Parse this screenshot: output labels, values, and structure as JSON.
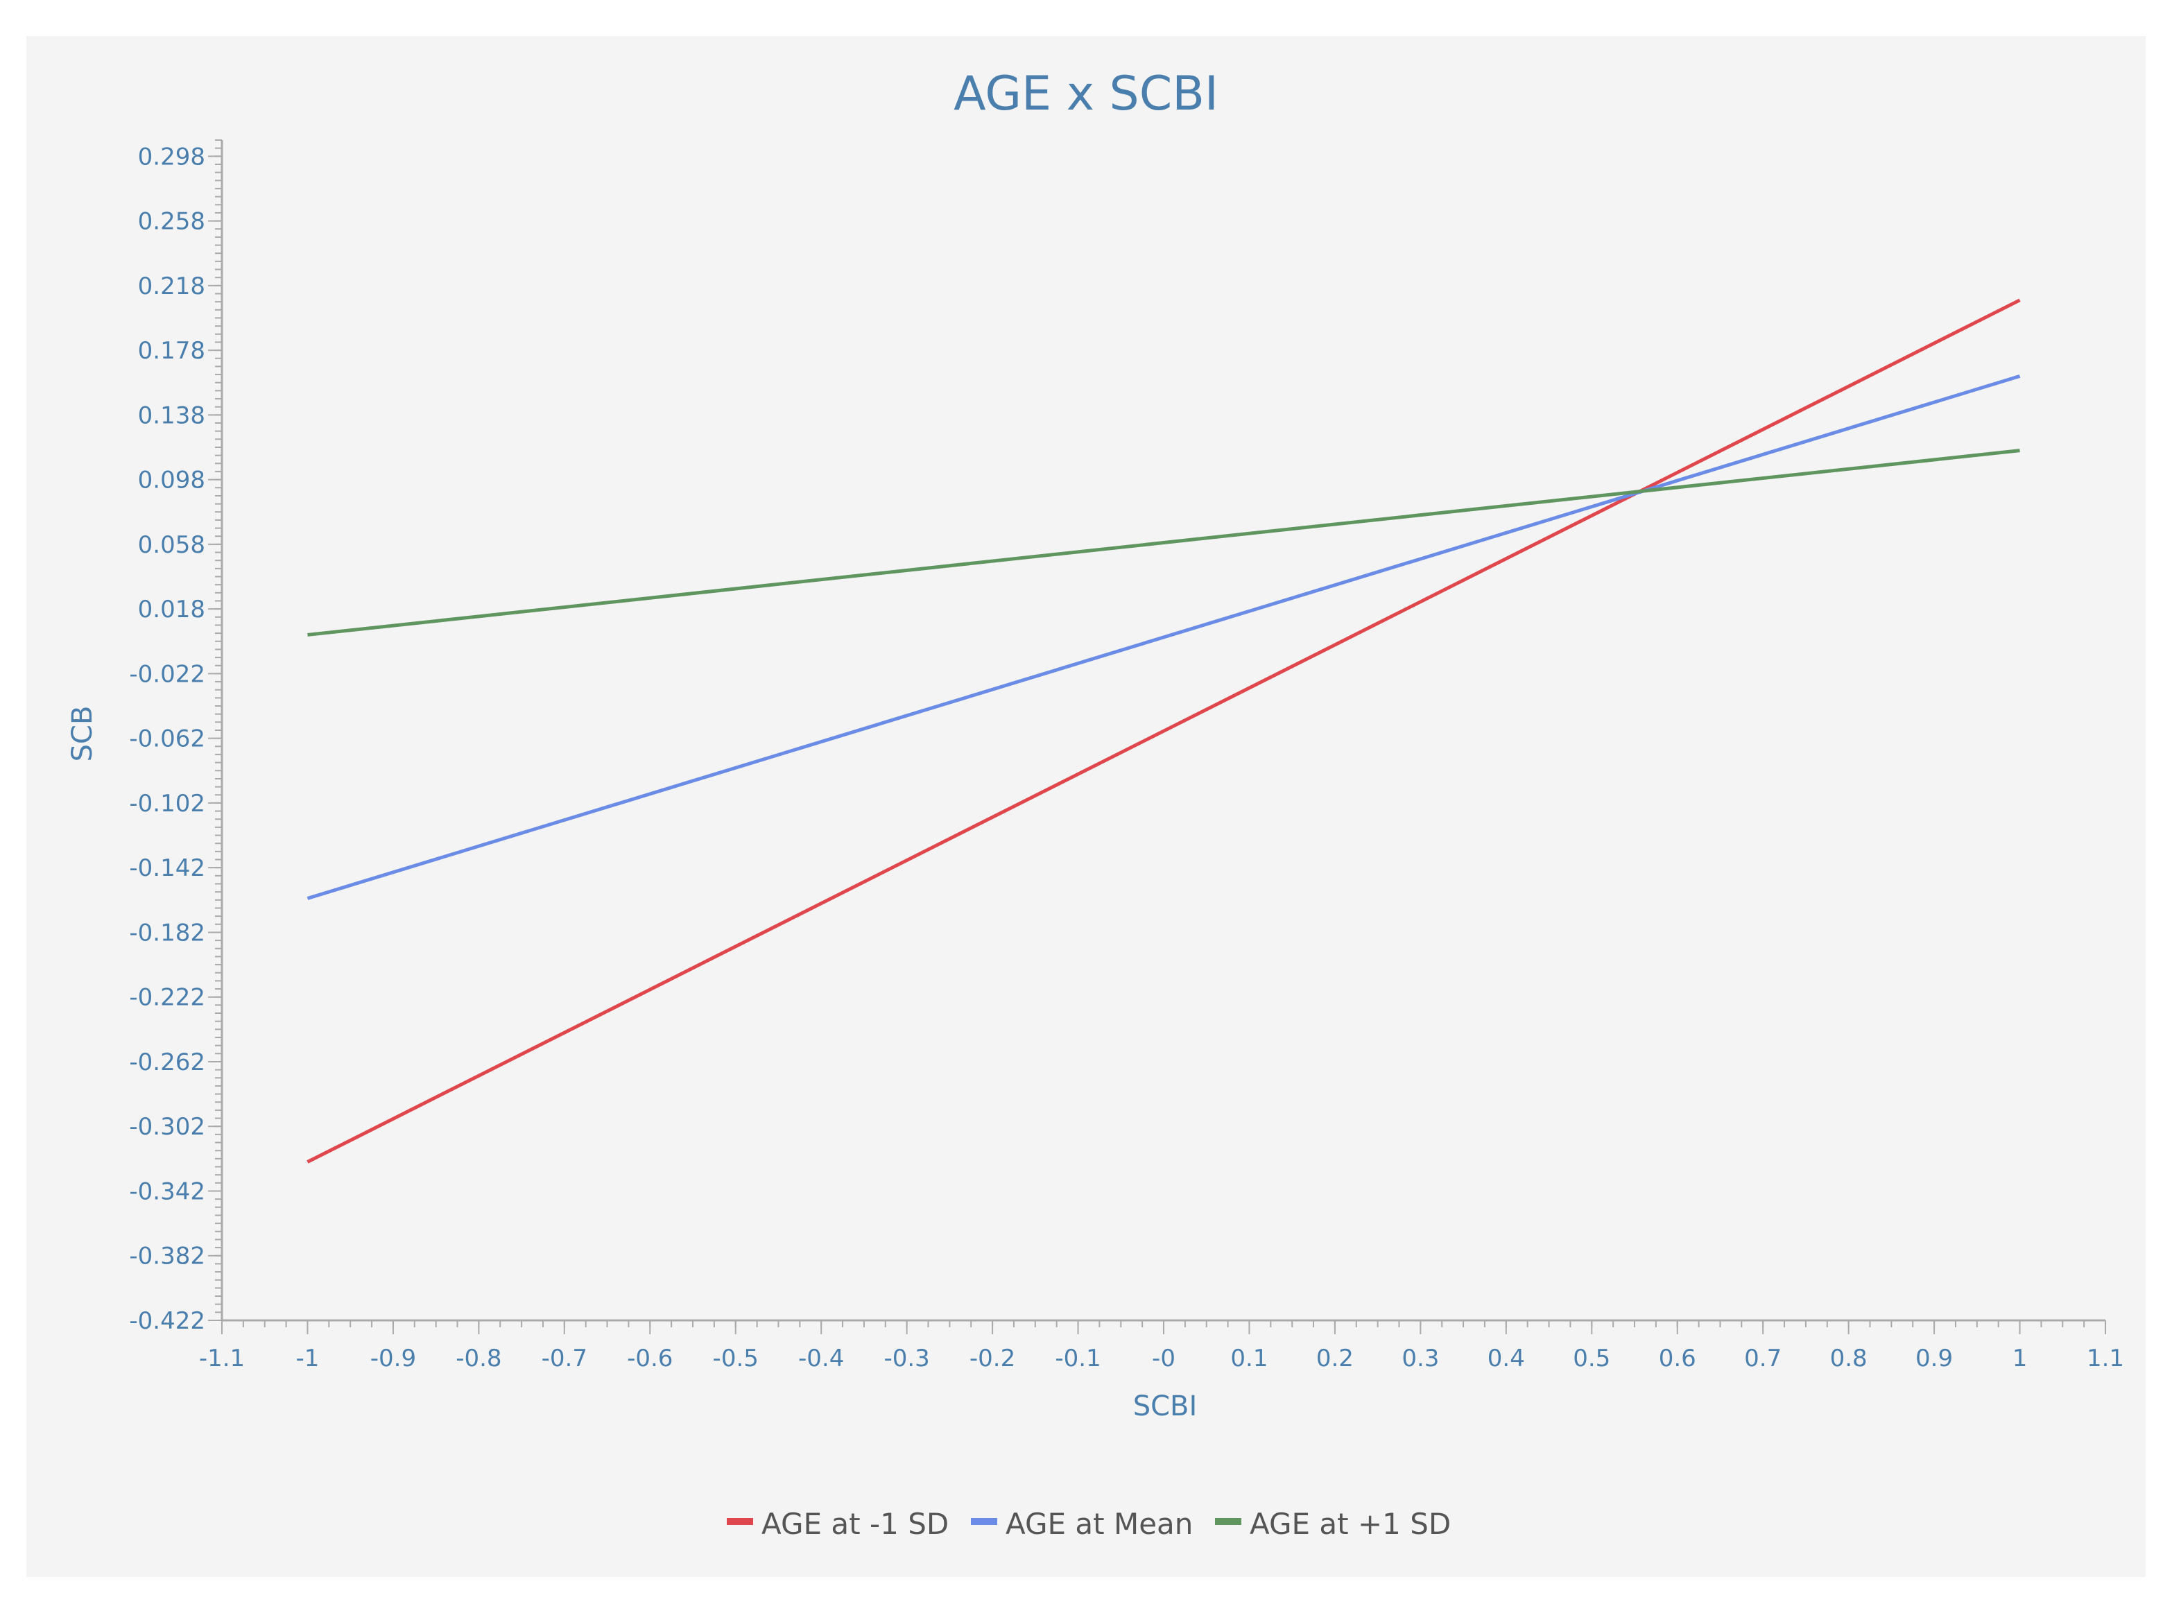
{
  "chart_data": {
    "type": "line",
    "title": "AGE x SCBI",
    "xlabel": "SCBI",
    "ylabel": "SCB",
    "xlim": [
      -1.1,
      1.1
    ],
    "ylim": [
      -0.422,
      0.308
    ],
    "x_ticks": [
      -1.1,
      -1,
      -0.9,
      -0.8,
      -0.7,
      -0.6,
      -0.5,
      -0.4,
      -0.3,
      -0.2,
      -0.1,
      0,
      0.1,
      0.2,
      0.3,
      0.4,
      0.5,
      0.6,
      0.7,
      0.8,
      0.9,
      1,
      1.1
    ],
    "x_tick_labels": [
      "-1.1",
      "-1",
      "-0.9",
      "-0.8",
      "-0.7",
      "-0.6",
      "-0.5",
      "-0.4",
      "-0.3",
      "-0.2",
      "-0.1",
      "-0",
      "0.1",
      "0.2",
      "0.3",
      "0.4",
      "0.5",
      "0.6",
      "0.7",
      "0.8",
      "0.9",
      "1",
      "1.1"
    ],
    "y_ticks": [
      0.298,
      0.258,
      0.218,
      0.178,
      0.138,
      0.098,
      0.058,
      0.018,
      -0.022,
      -0.062,
      -0.102,
      -0.142,
      -0.182,
      -0.222,
      -0.262,
      -0.302,
      -0.342,
      -0.382,
      -0.422
    ],
    "y_tick_labels": [
      "0.298",
      "0.258",
      "0.218",
      "0.178",
      "0.138",
      "0.098",
      "0.058",
      "0.018",
      "-0.022",
      "-0.062",
      "-0.102",
      "-0.142",
      "-0.182",
      "-0.222",
      "-0.262",
      "-0.302",
      "-0.342",
      "-0.382",
      "-0.422"
    ],
    "grid": false,
    "legend_position": "bottom-center",
    "series": [
      {
        "name": "AGE at -1 SD",
        "color": "#e0474c",
        "x": [
          -1,
          1
        ],
        "y": [
          -0.324,
          0.209
        ]
      },
      {
        "name": "AGE at Mean",
        "color": "#6b8ce6",
        "x": [
          -1,
          1
        ],
        "y": [
          -0.161,
          0.162
        ]
      },
      {
        "name": "AGE at +1 SD",
        "color": "#5f9660",
        "x": [
          -1,
          1
        ],
        "y": [
          0.002,
          0.116
        ]
      }
    ]
  }
}
